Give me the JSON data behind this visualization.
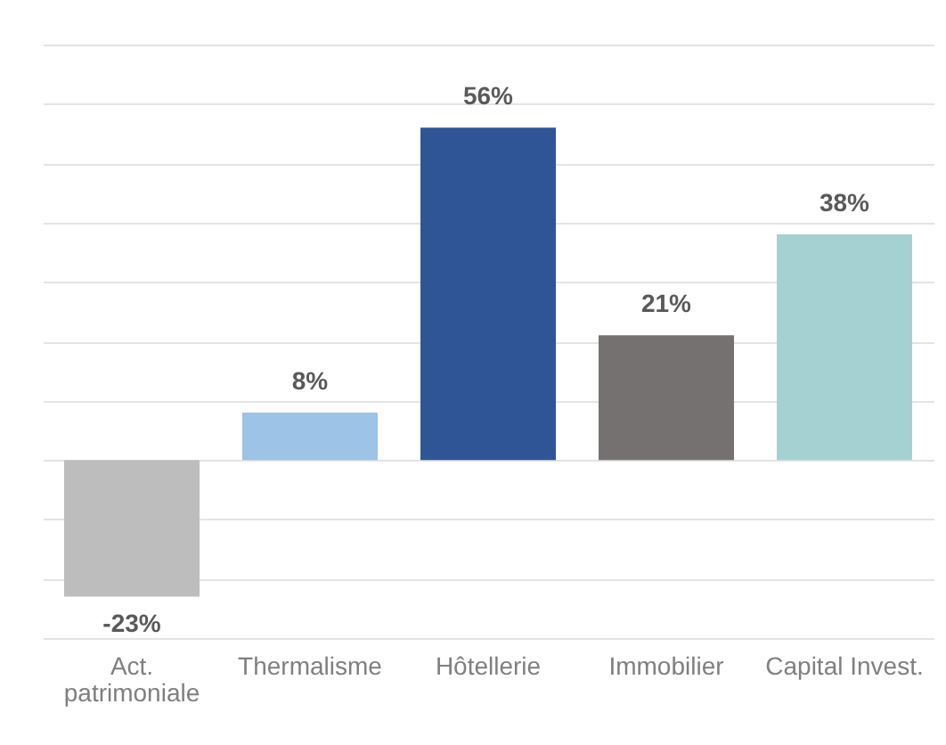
{
  "chart_data": {
    "type": "bar",
    "categories": [
      "Act. patrimoniale",
      "Thermalisme",
      "Hôtellerie",
      "Immobilier",
      "Capital Invest."
    ],
    "values": [
      -23,
      8,
      56,
      21,
      38
    ],
    "colors": [
      "#bdbdbd",
      "#9dc3e6",
      "#2f5597",
      "#767171",
      "#a5d1d3"
    ],
    "value_labels": [
      "-23%",
      "8%",
      "56%",
      "21%",
      "38%"
    ],
    "ylim": [
      -30,
      70
    ],
    "yticks": [
      {
        "value": -30,
        "label": null
      },
      {
        "value": -20,
        "label": null
      },
      {
        "value": -10,
        "label": null
      },
      {
        "value": 0,
        "label": null
      },
      {
        "value": 10,
        "label": null
      },
      {
        "value": 20,
        "label": null
      },
      {
        "value": 30,
        "label": null
      },
      {
        "value": 40,
        "label": null
      },
      {
        "value": 50,
        "label": null
      },
      {
        "value": 60,
        "label": null
      },
      {
        "value": 70,
        "label": null
      }
    ],
    "grid": "y",
    "tick_labels": "x"
  }
}
